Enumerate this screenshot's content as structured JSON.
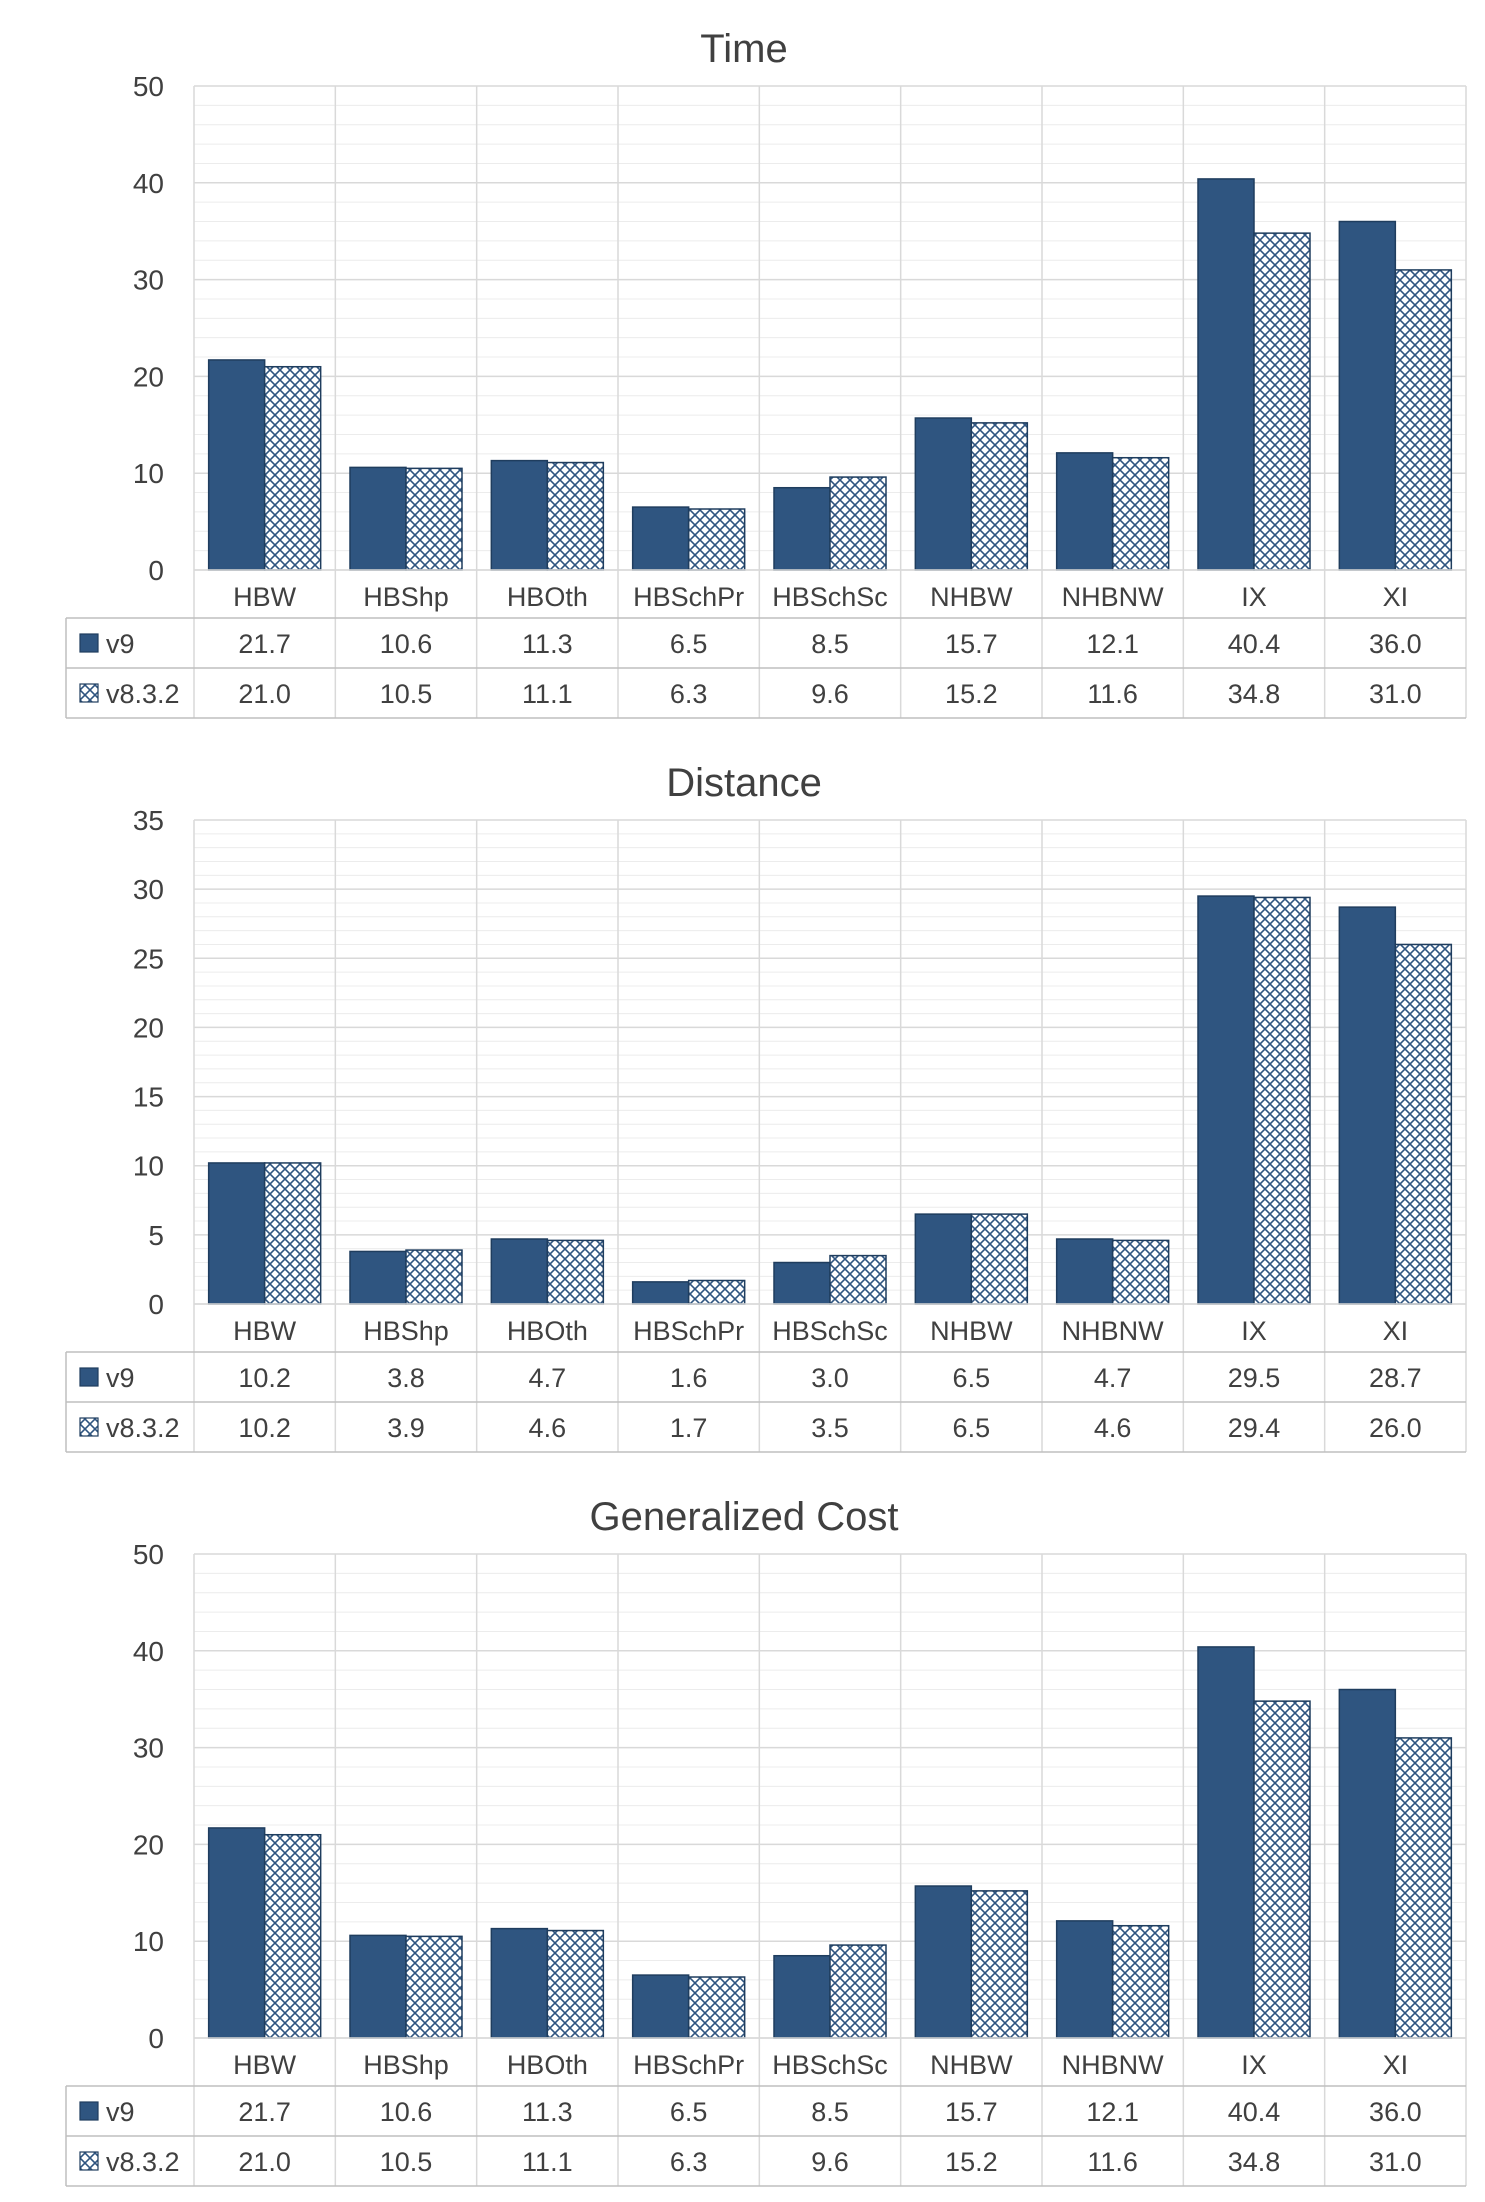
{
  "colors": {
    "v9": "#2f5580",
    "v8_3_2_hatch": "#2f5580",
    "gridline": "#d9d9d9",
    "border": "#bfbfbf",
    "text": "#404040"
  },
  "chart_data": [
    {
      "type": "bar",
      "title": "Time",
      "categories": [
        "HBW",
        "HBShp",
        "HBOth",
        "HBSchPr",
        "HBSchSc",
        "NHBW",
        "NHBNW",
        "IX",
        "XI"
      ],
      "ylim": [
        0,
        50
      ],
      "yticks": [
        0,
        10,
        20,
        30,
        40,
        50
      ],
      "grid": "on",
      "legend": "data table below chart",
      "series": [
        {
          "name": "v9",
          "fill": "solid",
          "values": [
            21.7,
            10.6,
            11.3,
            6.5,
            8.5,
            15.7,
            12.1,
            40.4,
            36.0
          ],
          "labels": [
            "21.7",
            "10.6",
            "11.3",
            "6.5",
            "8.5",
            "15.7",
            "12.1",
            "40.4",
            "36.0"
          ]
        },
        {
          "name": "v8.3.2",
          "fill": "crosshatch",
          "values": [
            21.0,
            10.5,
            11.1,
            6.3,
            9.6,
            15.2,
            11.6,
            34.8,
            31.0
          ],
          "labels": [
            "21.0",
            "10.5",
            "11.1",
            "6.3",
            "9.6",
            "15.2",
            "11.6",
            "34.8",
            "31.0"
          ]
        }
      ]
    },
    {
      "type": "bar",
      "title": "Distance",
      "categories": [
        "HBW",
        "HBShp",
        "HBOth",
        "HBSchPr",
        "HBSchSc",
        "NHBW",
        "NHBNW",
        "IX",
        "XI"
      ],
      "ylim": [
        0,
        35
      ],
      "yticks": [
        0,
        5,
        10,
        15,
        20,
        25,
        30,
        35
      ],
      "grid": "on",
      "legend": "data table below chart",
      "series": [
        {
          "name": "v9",
          "fill": "solid",
          "values": [
            10.2,
            3.8,
            4.7,
            1.6,
            3.0,
            6.5,
            4.7,
            29.5,
            28.7
          ],
          "labels": [
            "10.2",
            "3.8",
            "4.7",
            "1.6",
            "3.0",
            "6.5",
            "4.7",
            "29.5",
            "28.7"
          ]
        },
        {
          "name": "v8.3.2",
          "fill": "crosshatch",
          "values": [
            10.2,
            3.9,
            4.6,
            1.7,
            3.5,
            6.5,
            4.6,
            29.4,
            26.0
          ],
          "labels": [
            "10.2",
            "3.9",
            "4.6",
            "1.7",
            "3.5",
            "6.5",
            "4.6",
            "29.4",
            "26.0"
          ]
        }
      ]
    },
    {
      "type": "bar",
      "title": "Generalized Cost",
      "categories": [
        "HBW",
        "HBShp",
        "HBOth",
        "HBSchPr",
        "HBSchSc",
        "NHBW",
        "NHBNW",
        "IX",
        "XI"
      ],
      "ylim": [
        0,
        50
      ],
      "yticks": [
        0,
        10,
        20,
        30,
        40,
        50
      ],
      "grid": "on",
      "legend": "data table below chart",
      "series": [
        {
          "name": "v9",
          "fill": "solid",
          "values": [
            21.7,
            10.6,
            11.3,
            6.5,
            8.5,
            15.7,
            12.1,
            40.4,
            36.0
          ],
          "labels": [
            "21.7",
            "10.6",
            "11.3",
            "6.5",
            "8.5",
            "15.7",
            "12.1",
            "40.4",
            "36.0"
          ]
        },
        {
          "name": "v8.3.2",
          "fill": "crosshatch",
          "values": [
            21.0,
            10.5,
            11.1,
            6.3,
            9.6,
            15.2,
            11.6,
            34.8,
            31.0
          ],
          "labels": [
            "21.0",
            "10.5",
            "11.1",
            "6.3",
            "9.6",
            "15.2",
            "11.6",
            "34.8",
            "31.0"
          ]
        }
      ]
    }
  ]
}
